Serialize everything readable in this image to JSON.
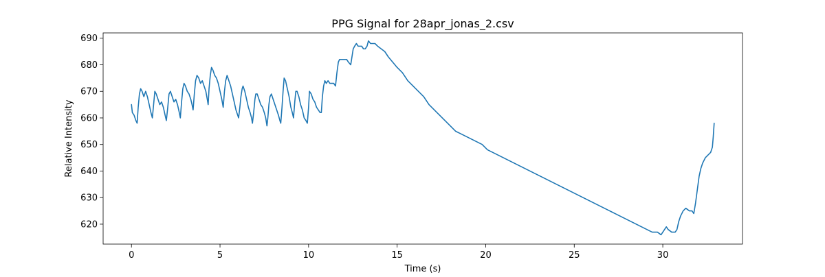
{
  "chart_data": {
    "type": "line",
    "title": "PPG Signal for 28apr_jonas_2.csv",
    "xlabel": "Time (s)",
    "ylabel": "Relative Intensity",
    "xlim": [
      -1.6,
      34.5
    ],
    "ylim": [
      612.5,
      692.0
    ],
    "x_ticks": [
      0,
      5,
      10,
      15,
      20,
      25,
      30
    ],
    "y_ticks": [
      620,
      630,
      640,
      650,
      660,
      670,
      680,
      690
    ],
    "grid": false,
    "legend": false,
    "series": [
      {
        "color": "#1f77b4",
        "points": [
          [
            0.0,
            665
          ],
          [
            0.05,
            662
          ],
          [
            0.15,
            661
          ],
          [
            0.25,
            659
          ],
          [
            0.32,
            658
          ],
          [
            0.38,
            664
          ],
          [
            0.45,
            669
          ],
          [
            0.52,
            671
          ],
          [
            0.6,
            670
          ],
          [
            0.7,
            668
          ],
          [
            0.8,
            670
          ],
          [
            0.9,
            668
          ],
          [
            1.0,
            665
          ],
          [
            1.1,
            662
          ],
          [
            1.18,
            660
          ],
          [
            1.25,
            665
          ],
          [
            1.32,
            670
          ],
          [
            1.4,
            669
          ],
          [
            1.5,
            667
          ],
          [
            1.6,
            665
          ],
          [
            1.7,
            666
          ],
          [
            1.8,
            664
          ],
          [
            1.9,
            661
          ],
          [
            1.97,
            659
          ],
          [
            2.05,
            664
          ],
          [
            2.12,
            669
          ],
          [
            2.2,
            670
          ],
          [
            2.3,
            668
          ],
          [
            2.4,
            666
          ],
          [
            2.5,
            667
          ],
          [
            2.6,
            665
          ],
          [
            2.7,
            662
          ],
          [
            2.76,
            660
          ],
          [
            2.83,
            666
          ],
          [
            2.9,
            671
          ],
          [
            2.97,
            673
          ],
          [
            3.05,
            672
          ],
          [
            3.15,
            670
          ],
          [
            3.25,
            669
          ],
          [
            3.35,
            667
          ],
          [
            3.42,
            665
          ],
          [
            3.48,
            663
          ],
          [
            3.55,
            669
          ],
          [
            3.62,
            674
          ],
          [
            3.7,
            676
          ],
          [
            3.8,
            675
          ],
          [
            3.9,
            673
          ],
          [
            4.0,
            674
          ],
          [
            4.1,
            672
          ],
          [
            4.2,
            670
          ],
          [
            4.28,
            667
          ],
          [
            4.33,
            665
          ],
          [
            4.38,
            671
          ],
          [
            4.45,
            676
          ],
          [
            4.52,
            679
          ],
          [
            4.6,
            678
          ],
          [
            4.7,
            676
          ],
          [
            4.8,
            675
          ],
          [
            4.9,
            673
          ],
          [
            5.0,
            670
          ],
          [
            5.1,
            667
          ],
          [
            5.18,
            664
          ],
          [
            5.25,
            670
          ],
          [
            5.32,
            674
          ],
          [
            5.4,
            676
          ],
          [
            5.5,
            674
          ],
          [
            5.6,
            672
          ],
          [
            5.7,
            669
          ],
          [
            5.8,
            666
          ],
          [
            5.9,
            663
          ],
          [
            6.0,
            661
          ],
          [
            6.05,
            660
          ],
          [
            6.12,
            664
          ],
          [
            6.18,
            668
          ],
          [
            6.25,
            671
          ],
          [
            6.3,
            672
          ],
          [
            6.4,
            670
          ],
          [
            6.5,
            667
          ],
          [
            6.6,
            664
          ],
          [
            6.7,
            662
          ],
          [
            6.78,
            660
          ],
          [
            6.83,
            658
          ],
          [
            6.9,
            662
          ],
          [
            6.97,
            667
          ],
          [
            7.02,
            669
          ],
          [
            7.1,
            669
          ],
          [
            7.2,
            667
          ],
          [
            7.3,
            665
          ],
          [
            7.4,
            664
          ],
          [
            7.5,
            662
          ],
          [
            7.58,
            660
          ],
          [
            7.65,
            657
          ],
          [
            7.7,
            660
          ],
          [
            7.76,
            665
          ],
          [
            7.82,
            668
          ],
          [
            7.9,
            669
          ],
          [
            8.0,
            667
          ],
          [
            8.1,
            665
          ],
          [
            8.2,
            663
          ],
          [
            8.3,
            661
          ],
          [
            8.38,
            659
          ],
          [
            8.43,
            658
          ],
          [
            8.5,
            664
          ],
          [
            8.56,
            670
          ],
          [
            8.62,
            675
          ],
          [
            8.7,
            674
          ],
          [
            8.8,
            671
          ],
          [
            8.9,
            668
          ],
          [
            9.0,
            664
          ],
          [
            9.08,
            662
          ],
          [
            9.15,
            660
          ],
          [
            9.22,
            666
          ],
          [
            9.28,
            670
          ],
          [
            9.35,
            670
          ],
          [
            9.45,
            668
          ],
          [
            9.55,
            665
          ],
          [
            9.65,
            663
          ],
          [
            9.75,
            660
          ],
          [
            9.85,
            659
          ],
          [
            9.93,
            658
          ],
          [
            10.0,
            664
          ],
          [
            10.05,
            670
          ],
          [
            10.15,
            669
          ],
          [
            10.25,
            667
          ],
          [
            10.35,
            666
          ],
          [
            10.45,
            664
          ],
          [
            10.55,
            663
          ],
          [
            10.65,
            662
          ],
          [
            10.72,
            662
          ],
          [
            10.78,
            668
          ],
          [
            10.85,
            672
          ],
          [
            10.92,
            674
          ],
          [
            11.0,
            673
          ],
          [
            11.1,
            674
          ],
          [
            11.2,
            673
          ],
          [
            11.3,
            673
          ],
          [
            11.42,
            673
          ],
          [
            11.52,
            672
          ],
          [
            11.6,
            677
          ],
          [
            11.68,
            681
          ],
          [
            11.75,
            682
          ],
          [
            11.85,
            682
          ],
          [
            11.95,
            682
          ],
          [
            12.05,
            682
          ],
          [
            12.15,
            682
          ],
          [
            12.25,
            681
          ],
          [
            12.38,
            680
          ],
          [
            12.45,
            683
          ],
          [
            12.52,
            686
          ],
          [
            12.6,
            687
          ],
          [
            12.7,
            688
          ],
          [
            12.8,
            687
          ],
          [
            12.9,
            687
          ],
          [
            13.0,
            687
          ],
          [
            13.1,
            686
          ],
          [
            13.2,
            686
          ],
          [
            13.3,
            687
          ],
          [
            13.38,
            689
          ],
          [
            13.5,
            688
          ],
          [
            13.6,
            688
          ],
          [
            13.75,
            688
          ],
          [
            13.9,
            687
          ],
          [
            14.1,
            686
          ],
          [
            14.3,
            685
          ],
          [
            14.5,
            683
          ],
          [
            14.75,
            681
          ],
          [
            15.0,
            679
          ],
          [
            15.3,
            677
          ],
          [
            15.6,
            674
          ],
          [
            15.9,
            672
          ],
          [
            16.2,
            670
          ],
          [
            16.5,
            668
          ],
          [
            16.8,
            665
          ],
          [
            17.1,
            663
          ],
          [
            17.4,
            661
          ],
          [
            17.7,
            659
          ],
          [
            18.0,
            657
          ],
          [
            18.3,
            655
          ],
          [
            18.6,
            654
          ],
          [
            18.9,
            653
          ],
          [
            19.2,
            652
          ],
          [
            19.5,
            651
          ],
          [
            19.8,
            650
          ],
          [
            20.1,
            648
          ],
          [
            20.4,
            647
          ],
          [
            20.7,
            646
          ],
          [
            21.0,
            645
          ],
          [
            21.3,
            644
          ],
          [
            21.6,
            643
          ],
          [
            21.9,
            642
          ],
          [
            22.2,
            641
          ],
          [
            22.5,
            640
          ],
          [
            22.8,
            639
          ],
          [
            23.1,
            638
          ],
          [
            23.4,
            637
          ],
          [
            23.7,
            636
          ],
          [
            24.0,
            635
          ],
          [
            24.3,
            634
          ],
          [
            24.6,
            633
          ],
          [
            24.9,
            632
          ],
          [
            25.2,
            631
          ],
          [
            25.5,
            630
          ],
          [
            25.8,
            629
          ],
          [
            26.1,
            628
          ],
          [
            26.4,
            627
          ],
          [
            26.7,
            626
          ],
          [
            27.0,
            625
          ],
          [
            27.3,
            624
          ],
          [
            27.6,
            623
          ],
          [
            27.9,
            622
          ],
          [
            28.2,
            621
          ],
          [
            28.5,
            620
          ],
          [
            28.8,
            619
          ],
          [
            29.1,
            618
          ],
          [
            29.4,
            617
          ],
          [
            29.7,
            617
          ],
          [
            29.9,
            616
          ],
          [
            30.0,
            617
          ],
          [
            30.1,
            618
          ],
          [
            30.2,
            619
          ],
          [
            30.3,
            618
          ],
          [
            30.5,
            617
          ],
          [
            30.7,
            617
          ],
          [
            30.8,
            618
          ],
          [
            30.9,
            621
          ],
          [
            31.0,
            623
          ],
          [
            31.15,
            625
          ],
          [
            31.3,
            626
          ],
          [
            31.5,
            625
          ],
          [
            31.65,
            625
          ],
          [
            31.75,
            624
          ],
          [
            31.85,
            628
          ],
          [
            31.95,
            633
          ],
          [
            32.05,
            638
          ],
          [
            32.15,
            641
          ],
          [
            32.25,
            643
          ],
          [
            32.4,
            645
          ],
          [
            32.55,
            646
          ],
          [
            32.7,
            647
          ],
          [
            32.8,
            649
          ],
          [
            32.85,
            653
          ],
          [
            32.9,
            658
          ]
        ]
      }
    ]
  }
}
